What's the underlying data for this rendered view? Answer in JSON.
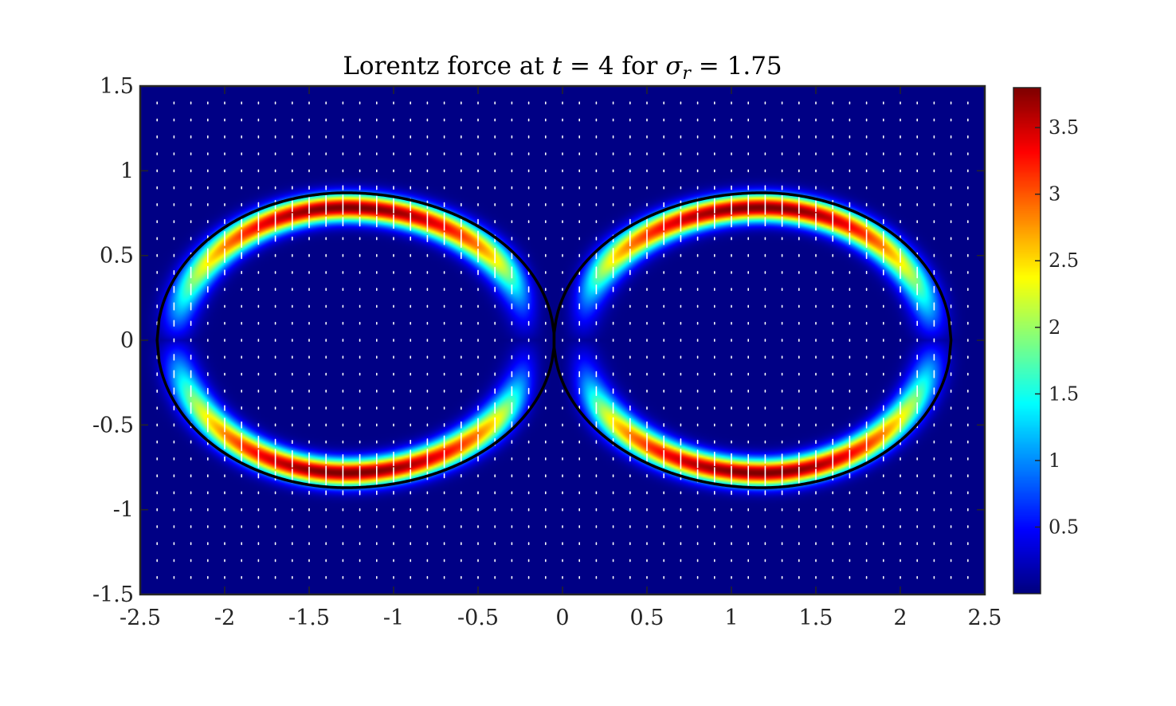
{
  "chart_data": {
    "type": "heatmap",
    "title": {
      "prefix": "Lorentz force at ",
      "var_t": "t",
      "eq_t": " = 4 for ",
      "var_sigma": "σ",
      "sub_r": "r",
      "eq_sigma": " = 1.75"
    },
    "xlabel": "",
    "ylabel": "",
    "xlim": [
      -2.5,
      2.5
    ],
    "ylim": [
      -1.5,
      1.5
    ],
    "x_ticks": [
      {
        "value": -2.5,
        "label": "-2.5"
      },
      {
        "value": -2,
        "label": "-2"
      },
      {
        "value": -1.5,
        "label": "-1.5"
      },
      {
        "value": -1,
        "label": "-1"
      },
      {
        "value": -0.5,
        "label": "-0.5"
      },
      {
        "value": 0,
        "label": "0"
      },
      {
        "value": 0.5,
        "label": "0.5"
      },
      {
        "value": 1,
        "label": "1"
      },
      {
        "value": 1.5,
        "label": "1.5"
      },
      {
        "value": 2,
        "label": "2"
      },
      {
        "value": 2.5,
        "label": "2.5"
      }
    ],
    "y_ticks": [
      {
        "value": -1.5,
        "label": "-1.5"
      },
      {
        "value": -1,
        "label": "-1"
      },
      {
        "value": -0.5,
        "label": "-0.5"
      },
      {
        "value": 0,
        "label": "0"
      },
      {
        "value": 0.5,
        "label": "0.5"
      },
      {
        "value": 1,
        "label": "1"
      },
      {
        "value": 1.5,
        "label": "1.5"
      }
    ],
    "colormap": "jet",
    "clim": [
      0,
      3.8
    ],
    "colorbar_ticks": [
      {
        "value": 0.5,
        "label": "0.5"
      },
      {
        "value": 1,
        "label": "1"
      },
      {
        "value": 1.5,
        "label": "1.5"
      },
      {
        "value": 2,
        "label": "2"
      },
      {
        "value": 2.5,
        "label": "2.5"
      },
      {
        "value": 3,
        "label": "3"
      },
      {
        "value": 3.5,
        "label": "3.5"
      }
    ],
    "interface": {
      "shape": "two touching ellipses (figure-eight)",
      "left_center": [
        -1.28,
        0
      ],
      "right_center": [
        1.18,
        0
      ],
      "left_x_range": [
        -2.4,
        -0.05
      ],
      "right_x_range": [
        -0.05,
        2.3
      ],
      "half_height": 0.87,
      "neck_half_gap": 0.04,
      "color": "#000000"
    },
    "field": {
      "description": "force magnitude concentrated in a band just inside the interface, peaking near top and bottom of each lobe",
      "peak_value": 3.8,
      "peak_locations": [
        [
          -1.28,
          0.79
        ],
        [
          -1.28,
          -0.79
        ],
        [
          1.18,
          0.79
        ],
        [
          1.18,
          -0.79
        ]
      ],
      "background_value": 0.02
    },
    "quiver": {
      "grid_dx": 0.1,
      "grid_dy": 0.1,
      "x_range": [
        -2.4,
        2.4
      ],
      "y_range": [
        -1.4,
        1.4
      ],
      "direction": "mostly vertical, pointing toward the interface band",
      "color": "#ffffff"
    },
    "grid": false,
    "legend": "none",
    "colorbar_position": "right"
  }
}
